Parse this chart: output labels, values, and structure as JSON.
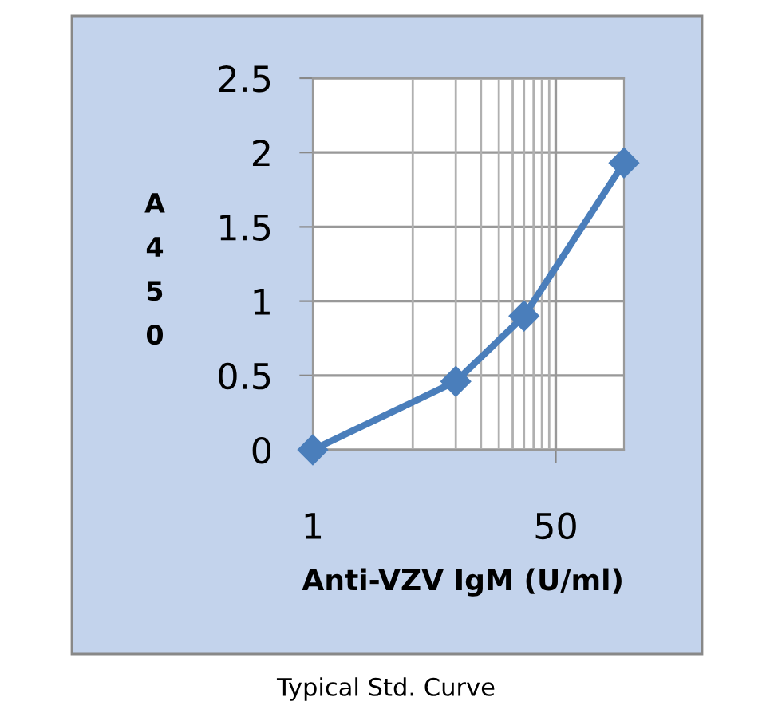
{
  "chart_data": {
    "type": "line",
    "xlabel": "Anti-VZV IgM (U/ml)",
    "ylabel": "A450",
    "annotations": [
      "Typical Std. Curve"
    ],
    "x": [
      1,
      10,
      30,
      150
    ],
    "series": [
      {
        "color": "#4a7ebb",
        "values": [
          0,
          0.46,
          0.9,
          1.93
        ]
      }
    ],
    "log": "x",
    "xlim": [
      1,
      150
    ],
    "xticks": [
      1,
      50
    ],
    "ylim": [
      0,
      2.5
    ],
    "yticks": [
      0,
      0.5,
      1,
      1.5,
      2,
      2.5
    ],
    "grid": true,
    "marker": "diamond",
    "line_style": "solid"
  }
}
